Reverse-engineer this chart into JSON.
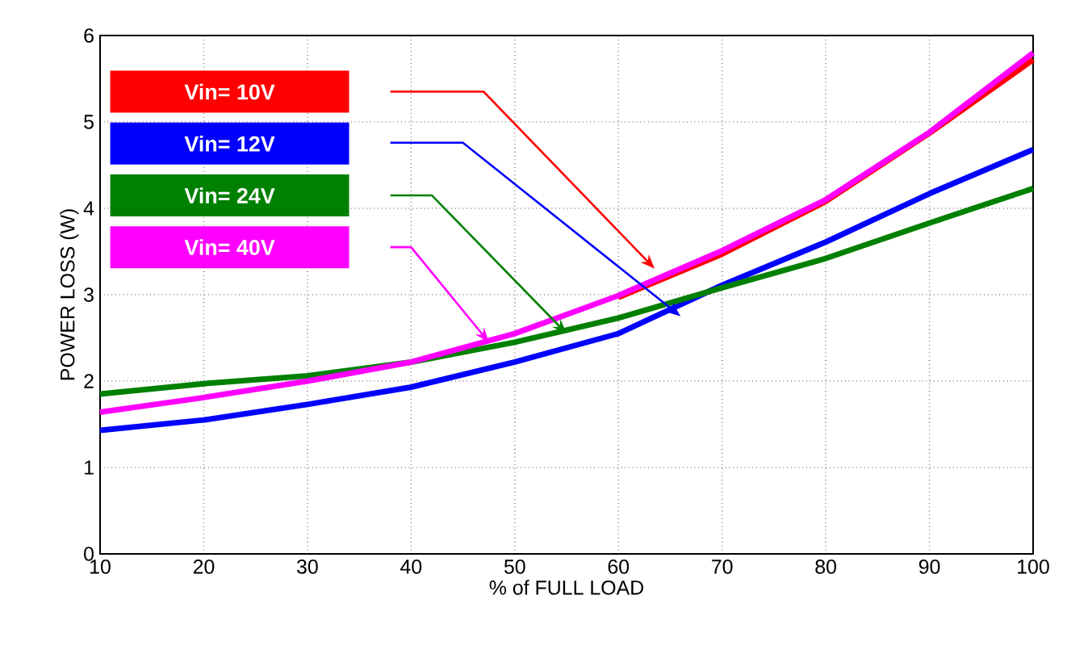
{
  "chart_data": {
    "type": "line",
    "xlabel": "% of FULL LOAD",
    "ylabel": "POWER LOSS (W)",
    "x": [
      10,
      20,
      30,
      40,
      50,
      60,
      70,
      80,
      90,
      100
    ],
    "series": [
      {
        "name": "Vin= 10V",
        "color": "#ff0000",
        "values": [
          null,
          null,
          null,
          null,
          null,
          2.97,
          3.47,
          4.08,
          4.87,
          5.72
        ]
      },
      {
        "name": "Vin= 12V",
        "color": "#0000ff",
        "values": [
          1.43,
          1.55,
          1.73,
          1.93,
          2.22,
          2.55,
          3.11,
          3.61,
          4.17,
          4.68
        ]
      },
      {
        "name": "Vin= 24V",
        "color": "#008000",
        "values": [
          1.85,
          1.97,
          2.06,
          2.22,
          2.45,
          2.73,
          3.08,
          3.42,
          3.83,
          4.23
        ]
      },
      {
        "name": "Vin= 40V",
        "color": "#ff00ff",
        "values": [
          1.64,
          1.81,
          2.0,
          2.22,
          2.55,
          2.99,
          3.51,
          4.1,
          4.88,
          5.8
        ]
      }
    ],
    "xlim": [
      10,
      100
    ],
    "ylim": [
      0,
      6
    ],
    "xticks": [
      10,
      20,
      30,
      40,
      50,
      60,
      70,
      80,
      90,
      100
    ],
    "yticks": [
      0,
      1,
      2,
      3,
      4,
      5,
      6
    ],
    "grid": true,
    "legend": "top left",
    "marker": "none",
    "line_style": "solid"
  }
}
